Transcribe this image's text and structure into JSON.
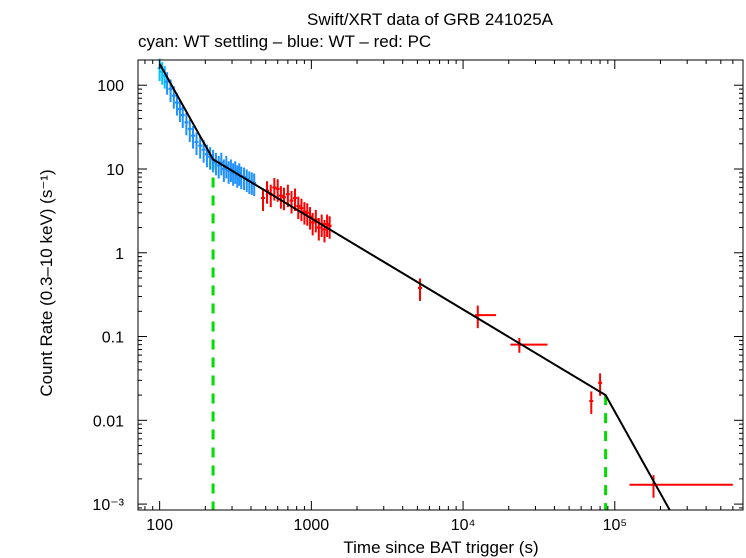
{
  "colors": {
    "wt_settling": "#00bfff",
    "wt": "#1e90ff",
    "pc": "#ff0000",
    "model": "#000000",
    "breaks": "#00dd00"
  },
  "chart_data": {
    "type": "scatter",
    "title": "Swift/XRT data of GRB 241025A",
    "subtitle": "cyan: WT settling – blue: WT – red: PC",
    "xlabel": "Time since BAT trigger (s)",
    "ylabel": "Count Rate (0.3–10 keV) (s⁻¹)",
    "xscale": "log",
    "yscale": "log",
    "xlim": [
      72,
      700000
    ],
    "ylim": [
      0.00085,
      200
    ],
    "x_ticks": [
      {
        "value": 100,
        "label": "100"
      },
      {
        "value": 1000,
        "label": "1000"
      },
      {
        "value": 10000,
        "label": "10⁴"
      },
      {
        "value": 100000,
        "label": "10⁵"
      }
    ],
    "y_ticks": [
      {
        "value": 100,
        "label": "100"
      },
      {
        "value": 10,
        "label": "10"
      },
      {
        "value": 1,
        "label": "1"
      },
      {
        "value": 0.1,
        "label": "0.1"
      },
      {
        "value": 0.01,
        "label": "0.01"
      },
      {
        "value": 0.001,
        "label": "10⁻³"
      }
    ],
    "model_line": [
      [
        100,
        180
      ],
      [
        225,
        13
      ],
      [
        87000,
        0.02
      ],
      [
        230000,
        0.00085
      ]
    ],
    "breaks": [
      225,
      87000
    ],
    "series": [
      {
        "name": "WT settling",
        "color": "#00bfff",
        "points": [
          [
            100,
            160,
            0.3
          ],
          [
            104,
            145,
            0.3
          ],
          [
            108,
            130,
            0.3
          ]
        ]
      },
      {
        "name": "WT",
        "color": "#1e90ff",
        "points": [
          [
            112,
            110,
            0.3
          ],
          [
            118,
            90,
            0.3
          ],
          [
            124,
            75,
            0.3
          ],
          [
            130,
            62,
            0.3
          ],
          [
            136,
            52,
            0.3
          ],
          [
            142,
            44,
            0.3
          ],
          [
            150,
            36,
            0.3
          ],
          [
            158,
            30,
            0.3
          ],
          [
            166,
            25,
            0.3
          ],
          [
            175,
            21,
            0.3
          ],
          [
            185,
            19,
            0.3
          ],
          [
            195,
            17,
            0.3
          ],
          [
            205,
            15,
            0.3
          ],
          [
            215,
            14,
            0.3
          ],
          [
            225,
            13,
            0.3
          ],
          [
            235,
            12,
            0.3
          ],
          [
            245,
            11,
            0.3
          ],
          [
            255,
            12,
            0.3
          ],
          [
            265,
            10,
            0.3
          ],
          [
            275,
            11,
            0.3
          ],
          [
            285,
            9.5,
            0.3
          ],
          [
            295,
            10,
            0.3
          ],
          [
            305,
            9,
            0.3
          ],
          [
            315,
            9.5,
            0.3
          ],
          [
            325,
            8.5,
            0.3
          ],
          [
            335,
            9,
            0.3
          ],
          [
            345,
            8.2,
            0.3
          ],
          [
            360,
            8,
            0.3
          ],
          [
            375,
            7.6,
            0.3
          ],
          [
            390,
            7.2,
            0.3
          ],
          [
            405,
            7,
            0.3
          ],
          [
            420,
            6.8,
            0.3
          ]
        ]
      },
      {
        "name": "PC",
        "color": "#ff0000",
        "points": [
          [
            480,
            4.5,
            0.3
          ],
          [
            510,
            5.5,
            0.3
          ],
          [
            540,
            5,
            0.3
          ],
          [
            570,
            6,
            0.3
          ],
          [
            600,
            5.8,
            0.3
          ],
          [
            630,
            4.8,
            0.3
          ],
          [
            660,
            4.6,
            0.3
          ],
          [
            700,
            5,
            0.3
          ],
          [
            740,
            4.2,
            0.3
          ],
          [
            780,
            4.5,
            0.3
          ],
          [
            820,
            3.6,
            0.3
          ],
          [
            860,
            3.4,
            0.3
          ],
          [
            900,
            3.1,
            0.3
          ],
          [
            940,
            3,
            0.3
          ],
          [
            980,
            2.7,
            0.3
          ],
          [
            1020,
            2.3,
            0.3
          ],
          [
            1070,
            2.5,
            0.3
          ],
          [
            1120,
            2,
            0.3
          ],
          [
            1170,
            2.2,
            0.3
          ],
          [
            1220,
            1.9,
            0.3
          ],
          [
            1270,
            2.2,
            0.3
          ],
          [
            1320,
            2.1,
            0.3
          ],
          [
            5200,
            0.38,
            0.3
          ],
          [
            12500,
            0.18,
            0.3
          ],
          [
            23500,
            0.08,
            0.2
          ],
          [
            70000,
            0.017,
            0.3
          ],
          [
            80000,
            0.028,
            0.3
          ],
          [
            180000,
            0.0017,
            0.3
          ]
        ],
        "xerr": [
          [
            12000,
            16500
          ],
          [
            20500,
            36000
          ],
          [
            125000,
            600000
          ]
        ]
      }
    ]
  }
}
